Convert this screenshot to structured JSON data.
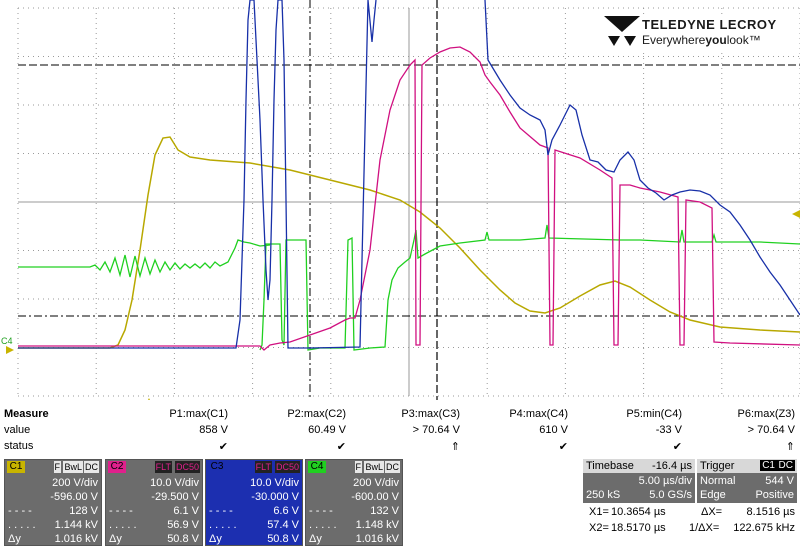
{
  "brand": {
    "name": "TELEDYNE LECROY",
    "tag_a": "Everywhere",
    "tag_b": "you",
    "tag_c": "look",
    "tm": "™"
  },
  "ground_marker": "C4",
  "measure": {
    "labels": {
      "measure": "Measure",
      "value": "value",
      "status": "status"
    },
    "params": [
      {
        "name": "P1:max(C1)",
        "value": "858 V",
        "status": "✔"
      },
      {
        "name": "P2:max(C2)",
        "value": "60.49 V",
        "status": "✔"
      },
      {
        "name": "P3:max(C3)",
        "value": "> 70.64 V",
        "status": "⇑"
      },
      {
        "name": "P4:max(C4)",
        "value": "610 V",
        "status": "✔"
      },
      {
        "name": "P5:min(C4)",
        "value": "-33 V",
        "status": "✔"
      },
      {
        "name": "P6:max(Z3)",
        "value": "> 70.64 V",
        "status": "⇑"
      }
    ]
  },
  "channels": [
    {
      "name": "C1",
      "badges": [
        "F",
        "BwL",
        "DC"
      ],
      "vdiv": "200 V/div",
      "offset": "-596.00 V",
      "r1": "128 V",
      "r2": "1.144 kV",
      "dy_label": "Δy",
      "dy": "1.016 kV",
      "color": "#c8b400",
      "head_bg": "#6c6c6c"
    },
    {
      "name": "C2",
      "badges": [
        "FLT",
        "DC50"
      ],
      "vdiv": "10.0 V/div",
      "offset": "-29.500 V",
      "r1": "6.1 V",
      "r2": "56.9 V",
      "dy_label": "Δy",
      "dy": "50.8 V",
      "color": "#e0208c",
      "head_bg": "#6c6c6c"
    },
    {
      "name": "C3",
      "badges": [
        "FLT",
        "DC50"
      ],
      "vdiv": "10.0 V/div",
      "offset": "-30.000 V",
      "r1": "6.6 V",
      "r2": "57.4 V",
      "dy_label": "Δy",
      "dy": "50.8 V",
      "color": "#1c2fb0",
      "head_bg": "#1c2fb0"
    },
    {
      "name": "C4",
      "badges": [
        "F",
        "BwL",
        "DC"
      ],
      "vdiv": "200 V/div",
      "offset": "-600.00 V",
      "r1": "132 V",
      "r2": "1.148 kV",
      "dy_label": "Δy",
      "dy": "1.016 kV",
      "color": "#20d020",
      "head_bg": "#6c6c6c"
    }
  ],
  "timebase": {
    "title": "Timebase",
    "delay": "-16.4 µs",
    "div": "5.00 µs/div",
    "samples": "250 kS",
    "rate": "5.0 GS/s"
  },
  "trigger": {
    "title": "Trigger",
    "source": "C1",
    "coupling": "DC",
    "mode": "Normal",
    "level": "544 V",
    "type": "Edge",
    "slope": "Positive"
  },
  "cursors": {
    "x1_label": "X1=",
    "x1": "10.3654 µs",
    "dx_label": "ΔX=",
    "dx": "8.1516 µs",
    "x2_label": "X2=",
    "x2": "18.5170 µs",
    "inv_label": "1/ΔX=",
    "inv": "122.675 kHz"
  }
}
